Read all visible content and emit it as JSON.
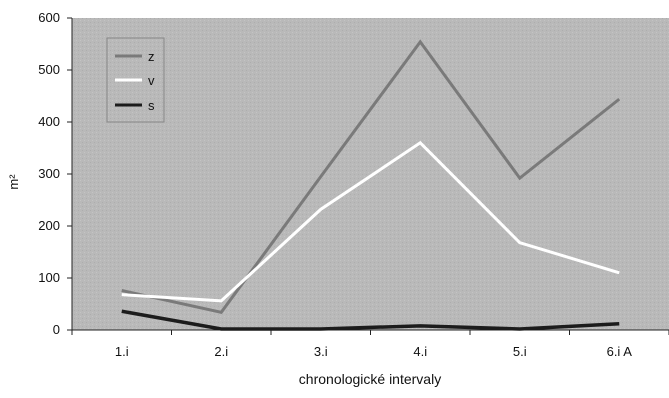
{
  "chart_data": {
    "type": "line",
    "title": "",
    "xlabel": "chronologické intervaly",
    "ylabel": "m²",
    "categories": [
      "1.i",
      "2.i",
      "3.i",
      "4.i",
      "5.i",
      "6.i A"
    ],
    "ylim": [
      0,
      600
    ],
    "yticks": [
      0,
      100,
      200,
      300,
      400,
      500,
      600
    ],
    "grid": false,
    "legend_position": "top-left",
    "series": [
      {
        "name": "z",
        "values": [
          76,
          34,
          295,
          554,
          292,
          444
        ],
        "color": "#7a7a7a"
      },
      {
        "name": "v",
        "values": [
          68,
          56,
          232,
          360,
          168,
          110
        ],
        "color": "#ffffff"
      },
      {
        "name": "s",
        "values": [
          36,
          2,
          2,
          8,
          2,
          12
        ],
        "color": "#1c1c1c"
      }
    ],
    "plot_background": "#b9b9b9"
  }
}
